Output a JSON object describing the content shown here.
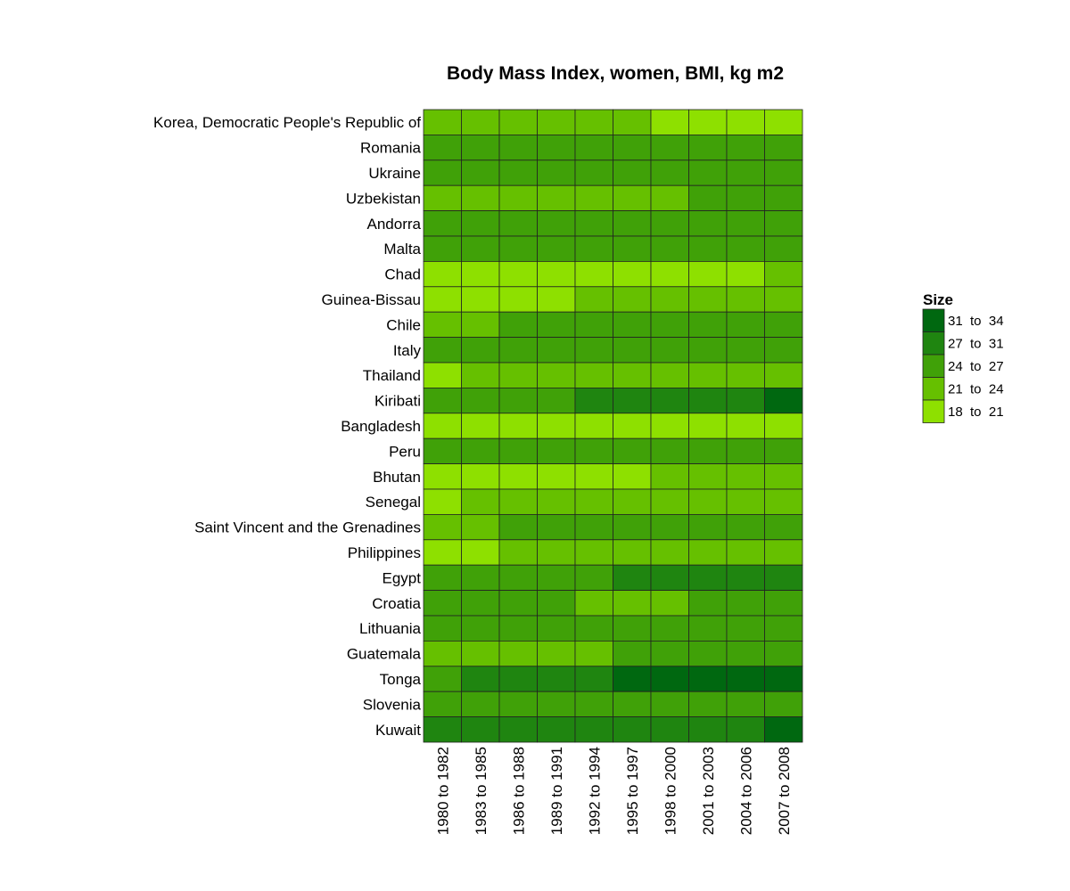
{
  "chart_data": {
    "type": "heatmap",
    "title": "Body Mass Index, women, BMI, kg m2",
    "legend": {
      "title": "Size",
      "position": "right",
      "bins": [
        {
          "label": "31  to  34",
          "color": "#006810"
        },
        {
          "label": "27  to  31",
          "color": "#1f8510"
        },
        {
          "label": "24  to  27",
          "color": "#40a108"
        },
        {
          "label": "21  to  24",
          "color": "#66c000"
        },
        {
          "label": "18  to  21",
          "color": "#8ee000"
        }
      ]
    },
    "columns": [
      "1980 to 1982",
      "1983 to 1985",
      "1986 to 1988",
      "1989 to 1991",
      "1992 to 1994",
      "1995 to 1997",
      "1998 to 2000",
      "2001 to 2003",
      "2004 to 2006",
      "2007 to 2008"
    ],
    "rows": [
      {
        "name": "Korea, Democratic People's Republic of",
        "bins": [
          "21  to  24",
          "21  to  24",
          "21  to  24",
          "21  to  24",
          "21  to  24",
          "21  to  24",
          "18  to  21",
          "18  to  21",
          "18  to  21",
          "18  to  21"
        ]
      },
      {
        "name": "Romania",
        "bins": [
          "24  to  27",
          "24  to  27",
          "24  to  27",
          "24  to  27",
          "24  to  27",
          "24  to  27",
          "24  to  27",
          "24  to  27",
          "24  to  27",
          "24  to  27"
        ]
      },
      {
        "name": "Ukraine",
        "bins": [
          "24  to  27",
          "24  to  27",
          "24  to  27",
          "24  to  27",
          "24  to  27",
          "24  to  27",
          "24  to  27",
          "24  to  27",
          "24  to  27",
          "24  to  27"
        ]
      },
      {
        "name": "Uzbekistan",
        "bins": [
          "21  to  24",
          "21  to  24",
          "21  to  24",
          "21  to  24",
          "21  to  24",
          "21  to  24",
          "21  to  24",
          "24  to  27",
          "24  to  27",
          "24  to  27"
        ]
      },
      {
        "name": "Andorra",
        "bins": [
          "24  to  27",
          "24  to  27",
          "24  to  27",
          "24  to  27",
          "24  to  27",
          "24  to  27",
          "24  to  27",
          "24  to  27",
          "24  to  27",
          "24  to  27"
        ]
      },
      {
        "name": "Malta",
        "bins": [
          "24  to  27",
          "24  to  27",
          "24  to  27",
          "24  to  27",
          "24  to  27",
          "24  to  27",
          "24  to  27",
          "24  to  27",
          "24  to  27",
          "24  to  27"
        ]
      },
      {
        "name": "Chad",
        "bins": [
          "18  to  21",
          "18  to  21",
          "18  to  21",
          "18  to  21",
          "18  to  21",
          "18  to  21",
          "18  to  21",
          "18  to  21",
          "18  to  21",
          "21  to  24"
        ]
      },
      {
        "name": "Guinea-Bissau",
        "bins": [
          "18  to  21",
          "18  to  21",
          "18  to  21",
          "18  to  21",
          "21  to  24",
          "21  to  24",
          "21  to  24",
          "21  to  24",
          "21  to  24",
          "21  to  24"
        ]
      },
      {
        "name": "Chile",
        "bins": [
          "21  to  24",
          "21  to  24",
          "24  to  27",
          "24  to  27",
          "24  to  27",
          "24  to  27",
          "24  to  27",
          "24  to  27",
          "24  to  27",
          "24  to  27"
        ]
      },
      {
        "name": "Italy",
        "bins": [
          "24  to  27",
          "24  to  27",
          "24  to  27",
          "24  to  27",
          "24  to  27",
          "24  to  27",
          "24  to  27",
          "24  to  27",
          "24  to  27",
          "24  to  27"
        ]
      },
      {
        "name": "Thailand",
        "bins": [
          "18  to  21",
          "21  to  24",
          "21  to  24",
          "21  to  24",
          "21  to  24",
          "21  to  24",
          "21  to  24",
          "21  to  24",
          "21  to  24",
          "21  to  24"
        ]
      },
      {
        "name": "Kiribati",
        "bins": [
          "24  to  27",
          "24  to  27",
          "24  to  27",
          "24  to  27",
          "27  to  31",
          "27  to  31",
          "27  to  31",
          "27  to  31",
          "27  to  31",
          "31  to  34"
        ]
      },
      {
        "name": "Bangladesh",
        "bins": [
          "18  to  21",
          "18  to  21",
          "18  to  21",
          "18  to  21",
          "18  to  21",
          "18  to  21",
          "18  to  21",
          "18  to  21",
          "18  to  21",
          "18  to  21"
        ]
      },
      {
        "name": "Peru",
        "bins": [
          "24  to  27",
          "24  to  27",
          "24  to  27",
          "24  to  27",
          "24  to  27",
          "24  to  27",
          "24  to  27",
          "24  to  27",
          "24  to  27",
          "24  to  27"
        ]
      },
      {
        "name": "Bhutan",
        "bins": [
          "18  to  21",
          "18  to  21",
          "18  to  21",
          "18  to  21",
          "18  to  21",
          "18  to  21",
          "21  to  24",
          "21  to  24",
          "21  to  24",
          "21  to  24"
        ]
      },
      {
        "name": "Senegal",
        "bins": [
          "18  to  21",
          "21  to  24",
          "21  to  24",
          "21  to  24",
          "21  to  24",
          "21  to  24",
          "21  to  24",
          "21  to  24",
          "21  to  24",
          "21  to  24"
        ]
      },
      {
        "name": "Saint Vincent and the Grenadines",
        "bins": [
          "21  to  24",
          "21  to  24",
          "24  to  27",
          "24  to  27",
          "24  to  27",
          "24  to  27",
          "24  to  27",
          "24  to  27",
          "24  to  27",
          "24  to  27"
        ]
      },
      {
        "name": "Philippines",
        "bins": [
          "18  to  21",
          "18  to  21",
          "21  to  24",
          "21  to  24",
          "21  to  24",
          "21  to  24",
          "21  to  24",
          "21  to  24",
          "21  to  24",
          "21  to  24"
        ]
      },
      {
        "name": "Egypt",
        "bins": [
          "24  to  27",
          "24  to  27",
          "24  to  27",
          "24  to  27",
          "24  to  27",
          "27  to  31",
          "27  to  31",
          "27  to  31",
          "27  to  31",
          "27  to  31"
        ]
      },
      {
        "name": "Croatia",
        "bins": [
          "24  to  27",
          "24  to  27",
          "24  to  27",
          "24  to  27",
          "21  to  24",
          "21  to  24",
          "21  to  24",
          "24  to  27",
          "24  to  27",
          "24  to  27"
        ]
      },
      {
        "name": "Lithuania",
        "bins": [
          "24  to  27",
          "24  to  27",
          "24  to  27",
          "24  to  27",
          "24  to  27",
          "24  to  27",
          "24  to  27",
          "24  to  27",
          "24  to  27",
          "24  to  27"
        ]
      },
      {
        "name": "Guatemala",
        "bins": [
          "21  to  24",
          "21  to  24",
          "21  to  24",
          "21  to  24",
          "21  to  24",
          "24  to  27",
          "24  to  27",
          "24  to  27",
          "24  to  27",
          "24  to  27"
        ]
      },
      {
        "name": "Tonga",
        "bins": [
          "24  to  27",
          "27  to  31",
          "27  to  31",
          "27  to  31",
          "27  to  31",
          "31  to  34",
          "31  to  34",
          "31  to  34",
          "31  to  34",
          "31  to  34"
        ]
      },
      {
        "name": "Slovenia",
        "bins": [
          "24  to  27",
          "24  to  27",
          "24  to  27",
          "24  to  27",
          "24  to  27",
          "24  to  27",
          "24  to  27",
          "24  to  27",
          "24  to  27",
          "24  to  27"
        ]
      },
      {
        "name": "Kuwait",
        "bins": [
          "27  to  31",
          "27  to  31",
          "27  to  31",
          "27  to  31",
          "27  to  31",
          "27  to  31",
          "27  to  31",
          "27  to  31",
          "27  to  31",
          "31  to  34"
        ]
      }
    ]
  }
}
